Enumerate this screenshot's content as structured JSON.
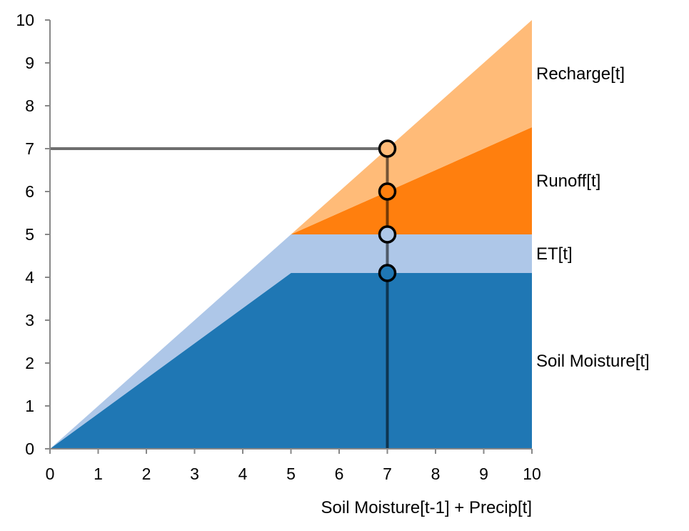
{
  "chart_data": {
    "type": "area",
    "xlabel": "Soil Moisture[t-1] + Precip[t]",
    "ylabel": "",
    "xlim": [
      0,
      10
    ],
    "ylim": [
      0,
      10
    ],
    "x_ticks": [
      0,
      1,
      2,
      3,
      4,
      5,
      6,
      7,
      8,
      9,
      10
    ],
    "y_ticks": [
      0,
      1,
      2,
      3,
      4,
      5,
      6,
      7,
      8,
      9,
      10
    ],
    "x": [
      0,
      5,
      10
    ],
    "series": [
      {
        "name": "Soil Moisture[t]",
        "color": "#1f77b4",
        "lower": [
          0,
          0,
          0
        ],
        "upper": [
          0,
          4.1,
          4.1
        ]
      },
      {
        "name": "ET[t]",
        "color": "#aec7e8",
        "lower": [
          0,
          4.1,
          4.1
        ],
        "upper": [
          0,
          5,
          5
        ]
      },
      {
        "name": "Runoff[t]",
        "color": "#ff7f0e",
        "lower": [
          0,
          5,
          5
        ],
        "upper": [
          0,
          5,
          7.5
        ]
      },
      {
        "name": "Recharge[t]",
        "color": "#ffbb78",
        "lower": [
          0,
          5,
          7.5
        ],
        "upper": [
          0,
          5,
          10
        ]
      }
    ],
    "marker": {
      "x": 7,
      "y": 7,
      "points": [
        {
          "y": 7,
          "color": "#ffbb78"
        },
        {
          "y": 6,
          "color": "#ff7f0e"
        },
        {
          "y": 5,
          "color": "#aec7e8"
        },
        {
          "y": 4.1,
          "color": "#1f77b4"
        }
      ]
    },
    "grid": false,
    "legend": "inline-right"
  }
}
